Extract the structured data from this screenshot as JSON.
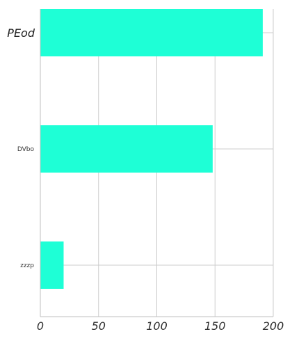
{
  "chart_data": {
    "type": "bar",
    "orientation": "horizontal",
    "title": "",
    "xlabel": "",
    "ylabel": "",
    "categories": [
      "PEod",
      "DVbo",
      "zzzp"
    ],
    "values": [
      191,
      148,
      20
    ],
    "xlim": [
      0,
      200
    ],
    "xticks": [
      "0",
      "50",
      "100",
      "150",
      "200"
    ],
    "grid": true,
    "bar_color": "#1effd6",
    "grid_color": "#cccccc"
  }
}
